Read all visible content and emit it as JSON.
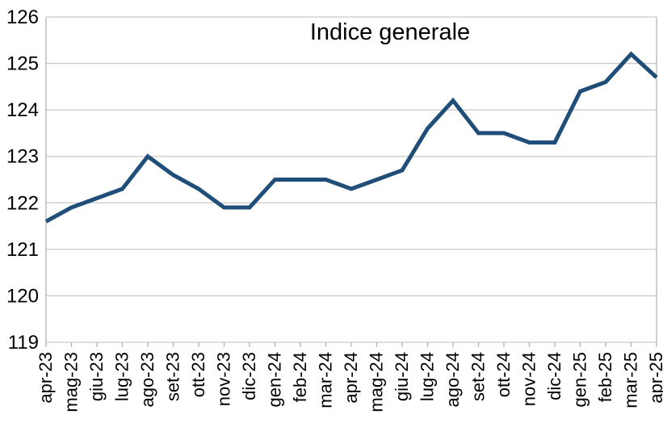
{
  "chart_data": {
    "type": "line",
    "title": "Indice generale",
    "categories": [
      "apr-23",
      "mag-23",
      "giu-23",
      "lug-23",
      "ago-23",
      "set-23",
      "ott-23",
      "nov-23",
      "dic-23",
      "gen-24",
      "feb-24",
      "mar-24",
      "apr-24",
      "mag-24",
      "giu-24",
      "lug-24",
      "ago-24",
      "set-24",
      "ott-24",
      "nov-24",
      "dic-24",
      "gen-25",
      "feb-25",
      "mar-25",
      "apr-25"
    ],
    "series": [
      {
        "name": "Indice generale",
        "values": [
          121.6,
          121.9,
          122.1,
          122.3,
          123.0,
          122.6,
          122.3,
          121.9,
          121.9,
          122.5,
          122.5,
          122.5,
          122.3,
          122.5,
          122.7,
          123.6,
          124.2,
          123.5,
          123.5,
          123.3,
          123.3,
          124.4,
          124.6,
          125.2,
          124.7
        ]
      }
    ],
    "ylim": [
      119,
      126
    ],
    "yticks": [
      119,
      120,
      121,
      122,
      123,
      124,
      125,
      126
    ],
    "grid": "horizontal",
    "legend_position": "none",
    "x_label_rotation_deg": 90,
    "colors": {
      "line": "#1f4e79",
      "grid": "#c9c9c9",
      "axis": "#b3b3b3",
      "text": "#000000",
      "background": "#ffffff"
    }
  }
}
